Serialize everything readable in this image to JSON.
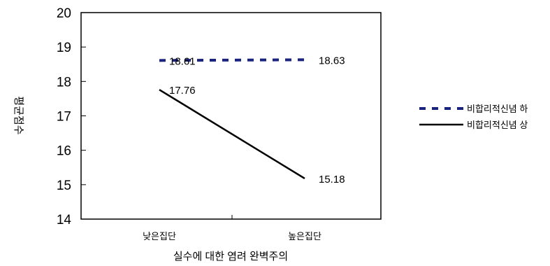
{
  "chart_data": {
    "type": "line",
    "xlabel": "실수에 대한 염려 완벽주의",
    "ylabel": "평균점수",
    "categories": [
      "낮은집단",
      "높은집단"
    ],
    "ylim": [
      14,
      20
    ],
    "yticks": [
      20,
      19,
      18,
      17,
      16,
      15,
      14
    ],
    "grid": false,
    "legend_position": "right",
    "series": [
      {
        "name": "비합리적신념 하",
        "values": [
          18.61,
          18.63
        ],
        "labels": [
          "18.61",
          "18.63"
        ],
        "style": "dashed",
        "color": "#1a237e"
      },
      {
        "name": "비합리적신념 상",
        "values": [
          17.76,
          15.18
        ],
        "labels": [
          "17.76",
          "15.18"
        ],
        "style": "solid",
        "color": "#000000"
      }
    ]
  }
}
